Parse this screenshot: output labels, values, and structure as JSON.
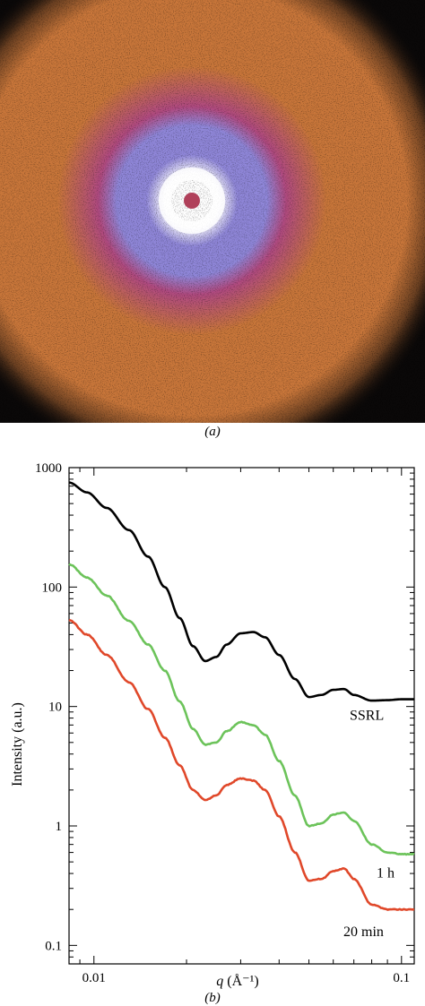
{
  "panel_a": {
    "caption": "(a)",
    "image": "saxs-2d-scattering-ring-pattern",
    "colors": {
      "background": "#0a0808",
      "outer_ring": "#c8763a",
      "middle_ring": "#b04a80",
      "inner_halo": "#8f86d8",
      "core": "#ffffff",
      "beamstop": "#b0405a"
    }
  },
  "panel_b": {
    "caption": "(b)",
    "chart_data": {
      "type": "line",
      "title": "",
      "xlabel_base": "q",
      "xlabel_unit": "(Å⁻¹)",
      "ylabel": "Intensity (a.u.)",
      "xscale": "log",
      "yscale": "log",
      "xlim": [
        0.0083,
        0.11
      ],
      "ylim": [
        0.07,
        1000
      ],
      "x_ticks": [
        {
          "value": 0.01,
          "label": "0.01"
        },
        {
          "value": 0.1,
          "label": "0.1"
        }
      ],
      "y_ticks": [
        {
          "value": 0.1,
          "label": "0.1"
        },
        {
          "value": 1,
          "label": "1"
        },
        {
          "value": 10,
          "label": "10"
        },
        {
          "value": 100,
          "label": "100"
        },
        {
          "value": 1000,
          "label": "1000"
        }
      ],
      "grid": false,
      "series": [
        {
          "name": "SSRL",
          "color": "#000000",
          "x": [
            0.0083,
            0.0095,
            0.011,
            0.013,
            0.015,
            0.017,
            0.019,
            0.021,
            0.023,
            0.025,
            0.027,
            0.03,
            0.033,
            0.036,
            0.04,
            0.045,
            0.05,
            0.055,
            0.06,
            0.065,
            0.07,
            0.08,
            0.09,
            0.1,
            0.11
          ],
          "y": [
            750,
            620,
            460,
            300,
            180,
            100,
            55,
            32,
            24,
            26,
            33,
            41,
            42,
            38,
            27,
            17,
            12,
            12.5,
            13.8,
            14,
            12.5,
            11.2,
            11.3,
            11.5,
            11.5
          ]
        },
        {
          "name": "1 h",
          "color": "#6cc35a",
          "x": [
            0.0083,
            0.0095,
            0.011,
            0.013,
            0.015,
            0.017,
            0.019,
            0.021,
            0.023,
            0.025,
            0.027,
            0.03,
            0.033,
            0.036,
            0.04,
            0.045,
            0.05,
            0.055,
            0.06,
            0.065,
            0.07,
            0.08,
            0.09,
            0.1,
            0.11
          ],
          "y": [
            155,
            120,
            85,
            52,
            33,
            20,
            11,
            6.5,
            4.8,
            5.0,
            6.2,
            7.4,
            7.0,
            5.8,
            3.5,
            1.8,
            1.0,
            1.05,
            1.25,
            1.3,
            1.1,
            0.7,
            0.6,
            0.58,
            0.58
          ]
        },
        {
          "name": "20 min",
          "color": "#e0482a",
          "x": [
            0.0083,
            0.0095,
            0.011,
            0.013,
            0.015,
            0.017,
            0.019,
            0.021,
            0.023,
            0.025,
            0.027,
            0.03,
            0.033,
            0.036,
            0.04,
            0.045,
            0.05,
            0.055,
            0.06,
            0.065,
            0.07,
            0.08,
            0.09,
            0.1,
            0.11
          ],
          "y": [
            53,
            40,
            27,
            16,
            9.5,
            5.5,
            3.2,
            2.0,
            1.65,
            1.8,
            2.2,
            2.5,
            2.4,
            2.0,
            1.2,
            0.6,
            0.35,
            0.36,
            0.42,
            0.44,
            0.36,
            0.22,
            0.2,
            0.2,
            0.2
          ]
        }
      ],
      "annotations": [
        {
          "text": "SSRL",
          "series": "SSRL"
        },
        {
          "text": "1 h",
          "series": "1 h"
        },
        {
          "text": "20 min",
          "series": "20 min"
        }
      ]
    }
  }
}
